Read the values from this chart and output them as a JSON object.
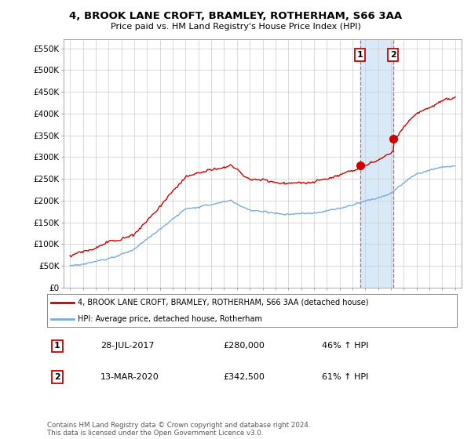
{
  "title": "4, BROOK LANE CROFT, BRAMLEY, ROTHERHAM, S66 3AA",
  "subtitle": "Price paid vs. HM Land Registry's House Price Index (HPI)",
  "yticks": [
    0,
    50000,
    100000,
    150000,
    200000,
    250000,
    300000,
    350000,
    400000,
    450000,
    500000,
    550000
  ],
  "ytick_labels": [
    "£0",
    "£50K",
    "£100K",
    "£150K",
    "£200K",
    "£250K",
    "£300K",
    "£350K",
    "£400K",
    "£450K",
    "£500K",
    "£550K"
  ],
  "legend_entry1": "4, BROOK LANE CROFT, BRAMLEY, ROTHERHAM, S66 3AA (detached house)",
  "legend_entry2": "HPI: Average price, detached house, Rotherham",
  "annotation1_date": "28-JUL-2017",
  "annotation1_price": "£280,000",
  "annotation1_pct": "46% ↑ HPI",
  "annotation2_date": "13-MAR-2020",
  "annotation2_price": "£342,500",
  "annotation2_pct": "61% ↑ HPI",
  "footnote": "Contains HM Land Registry data © Crown copyright and database right 2024.\nThis data is licensed under the Open Government Licence v3.0.",
  "red_color": "#cc0000",
  "blue_color": "#7aabe0",
  "highlight_bg": "#d8eaf8",
  "vline_color": "#e06070",
  "grid_color": "#cccccc",
  "background_color": "#ffffff",
  "t1": 2017.583,
  "t2": 2020.167,
  "sale1_price": 280000,
  "sale2_price": 342500
}
